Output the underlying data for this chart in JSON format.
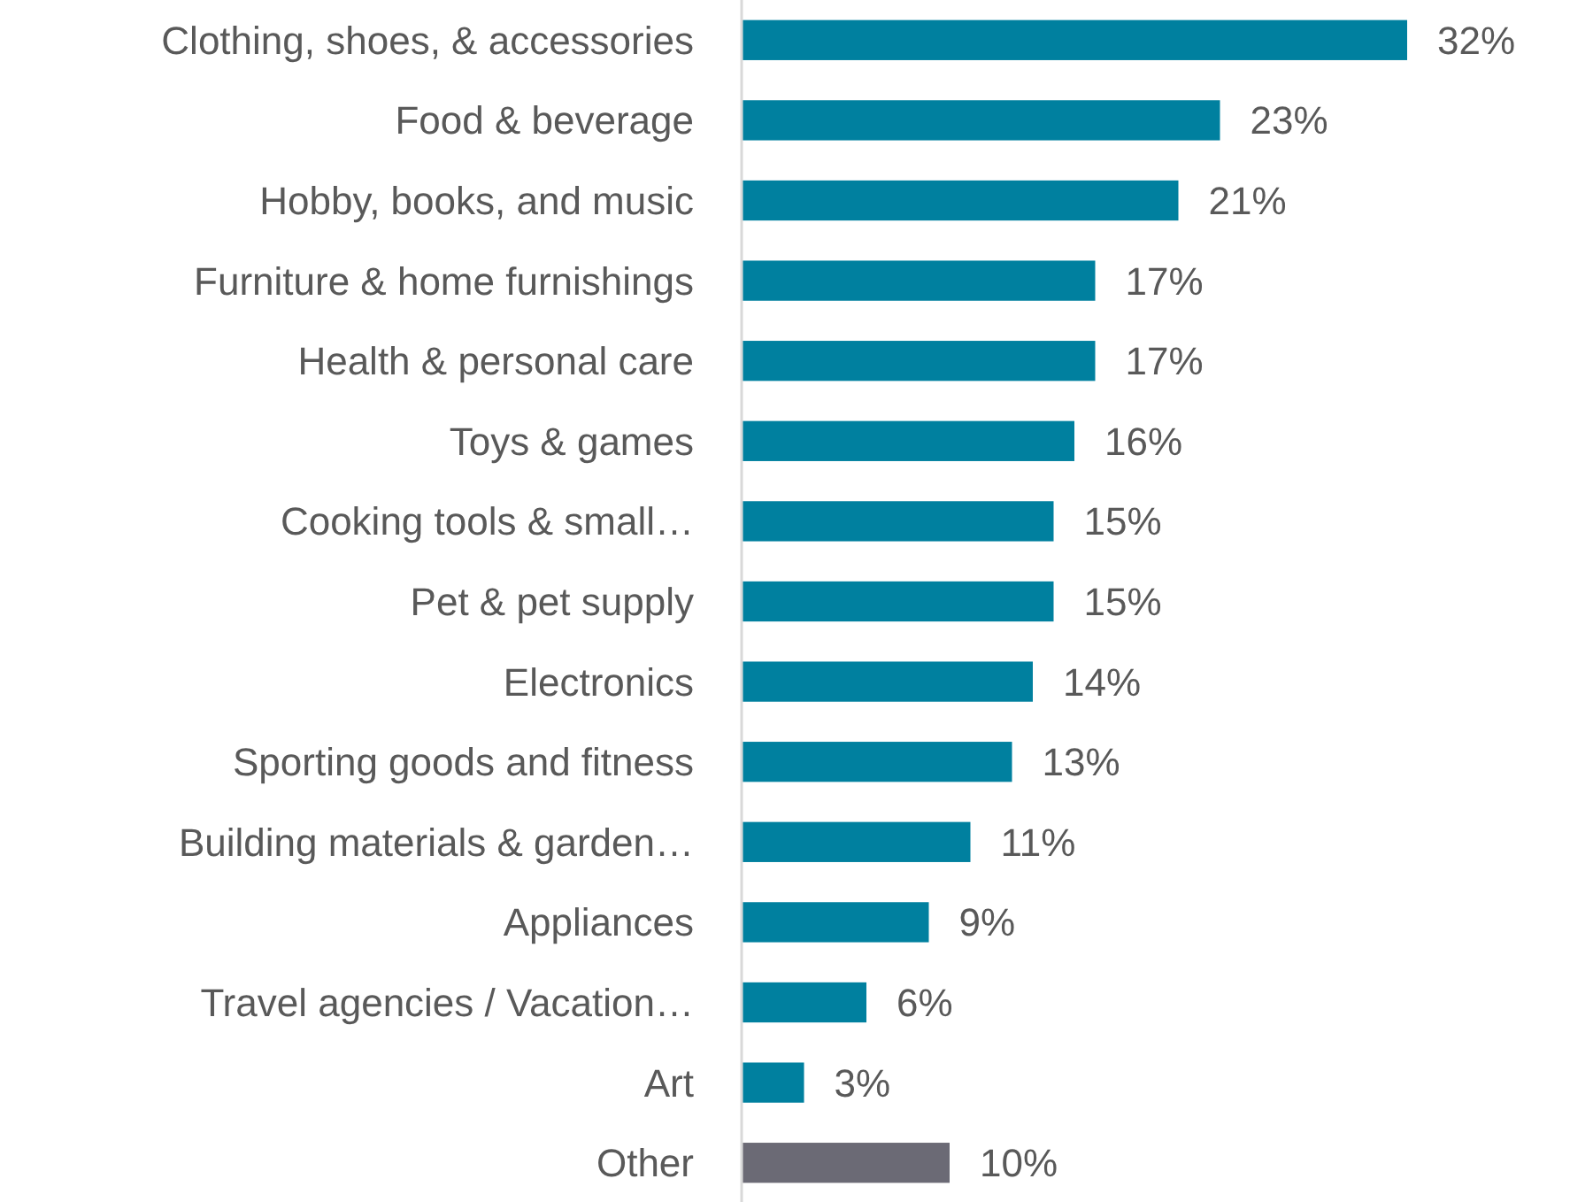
{
  "chart_data": {
    "type": "bar",
    "orientation": "horizontal",
    "categories": [
      "Clothing, shoes, & accessories",
      "Food & beverage",
      "Hobby, books, and music",
      "Furniture & home furnishings",
      "Health & personal care",
      "Toys & games",
      "Cooking tools & small…",
      "Pet & pet supply",
      "Electronics",
      "Sporting goods and fitness",
      "Building materials & garden…",
      "Appliances",
      "Travel agencies / Vacation…",
      "Art",
      "Other"
    ],
    "values": [
      32,
      23,
      21,
      17,
      17,
      16,
      15,
      15,
      14,
      13,
      11,
      9,
      6,
      3,
      10
    ],
    "colors": [
      "#00809f",
      "#00809f",
      "#00809f",
      "#00809f",
      "#00809f",
      "#00809f",
      "#00809f",
      "#00809f",
      "#00809f",
      "#00809f",
      "#00809f",
      "#00809f",
      "#00809f",
      "#00809f",
      "#6b6a75"
    ],
    "value_labels": [
      "32%",
      "23%",
      "21%",
      "17%",
      "17%",
      "16%",
      "15%",
      "15%",
      "14%",
      "13%",
      "11%",
      "9%",
      "6%",
      "3%",
      "10%"
    ],
    "data_labels": true
  }
}
